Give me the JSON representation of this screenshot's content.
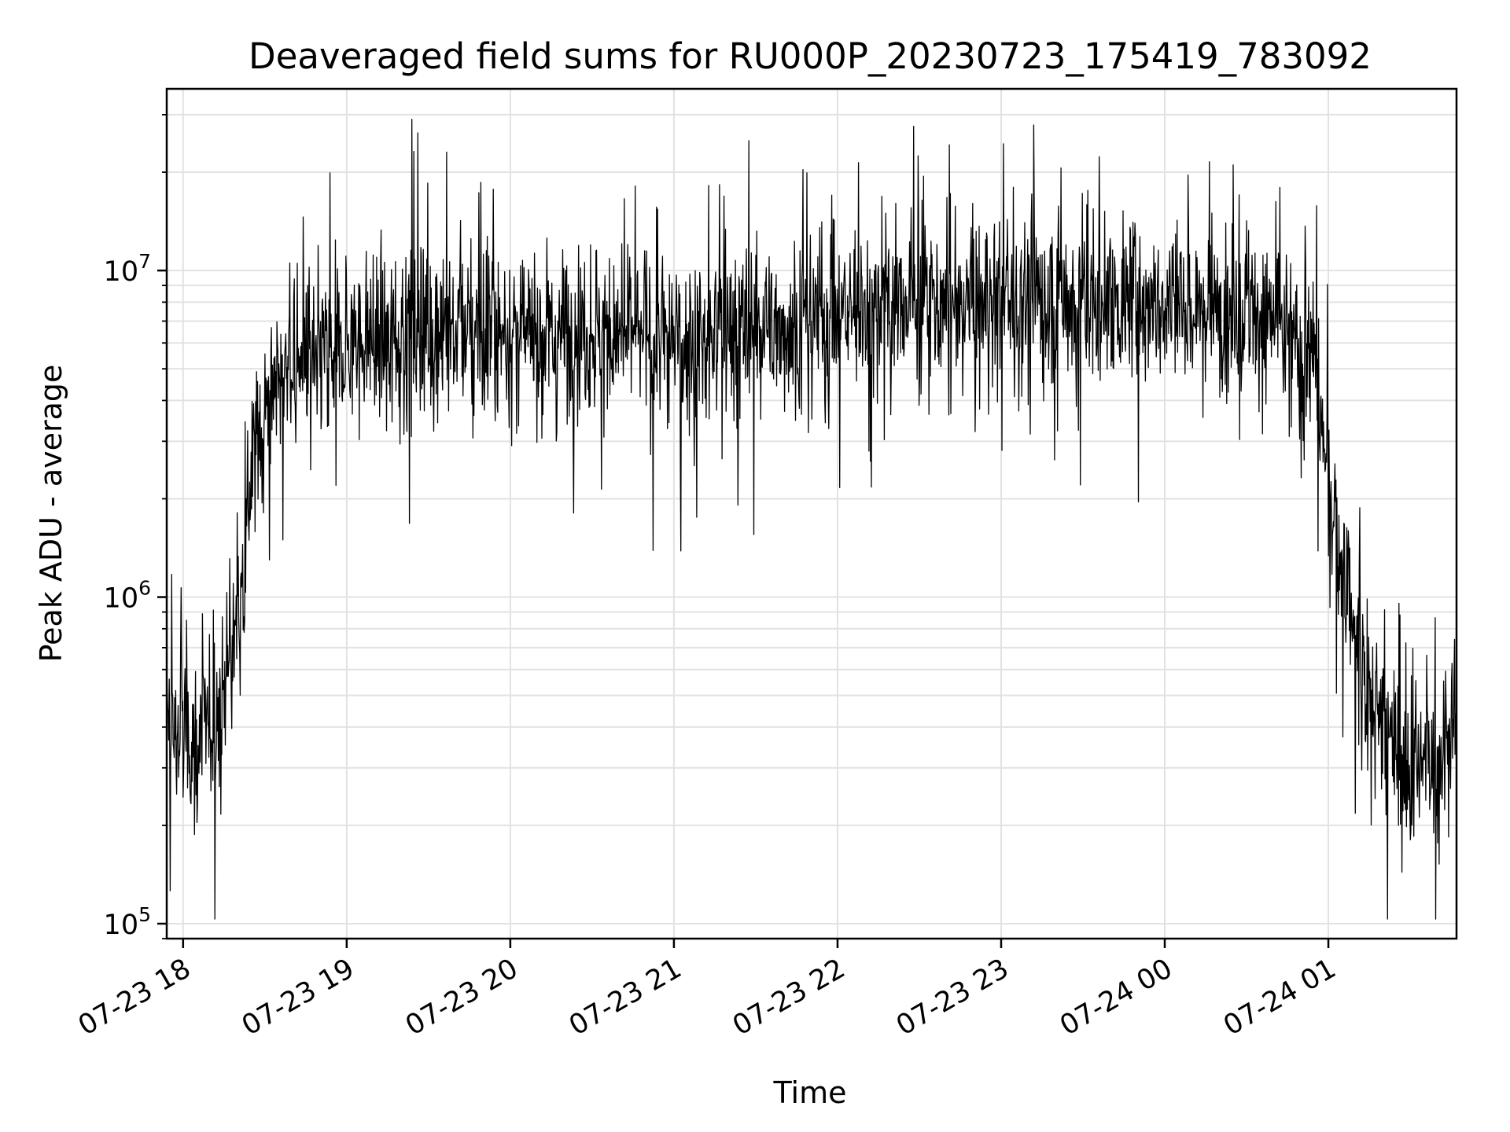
{
  "chart_data": {
    "type": "line",
    "title": "Deaveraged field sums for RU000P_20230723_175419_783092",
    "xlabel": "Time",
    "ylabel": "Peak ADU - average",
    "yscale": "log",
    "x_start": "2023-07-23 17:54",
    "x_end": "2023-07-24 01:47",
    "ylim": [
      90000,
      36000000
    ],
    "grid": true,
    "legend": "none",
    "line_color": "#000000",
    "x_ticks": [
      {
        "time": "2023-07-23 18:00",
        "label": "07-23 18"
      },
      {
        "time": "2023-07-23 19:00",
        "label": "07-23 19"
      },
      {
        "time": "2023-07-23 20:00",
        "label": "07-23 20"
      },
      {
        "time": "2023-07-23 21:00",
        "label": "07-23 21"
      },
      {
        "time": "2023-07-23 22:00",
        "label": "07-23 22"
      },
      {
        "time": "2023-07-23 23:00",
        "label": "07-23 23"
      },
      {
        "time": "2023-07-24 00:00",
        "label": "07-24 00"
      },
      {
        "time": "2023-07-24 01:00",
        "label": "07-24 01"
      }
    ],
    "y_ticks": [
      {
        "value": 100000,
        "base": "10",
        "exp": "5"
      },
      {
        "value": 1000000,
        "base": "10",
        "exp": "6"
      },
      {
        "value": 10000000,
        "base": "10",
        "exp": "7"
      }
    ],
    "series": [
      {
        "time": [
          "2023-07-23 17:54",
          "2023-07-23 18:00",
          "2023-07-23 18:05",
          "2023-07-23 18:10",
          "2023-07-23 18:15",
          "2023-07-23 18:20",
          "2023-07-23 18:25",
          "2023-07-23 18:30",
          "2023-07-23 18:40",
          "2023-07-23 18:50",
          "2023-07-23 19:00",
          "2023-07-23 19:30",
          "2023-07-23 20:00",
          "2023-07-23 20:30",
          "2023-07-23 21:00",
          "2023-07-23 21:30",
          "2023-07-23 22:00",
          "2023-07-23 22:30",
          "2023-07-23 23:00",
          "2023-07-23 23:30",
          "2023-07-24 00:00",
          "2023-07-24 00:30",
          "2023-07-24 00:45",
          "2023-07-24 00:55",
          "2023-07-24 01:00",
          "2023-07-24 01:05",
          "2023-07-24 01:10",
          "2023-07-24 01:15",
          "2023-07-24 01:20",
          "2023-07-24 01:25",
          "2023-07-24 01:30",
          "2023-07-24 01:35",
          "2023-07-24 01:40",
          "2023-07-24 01:47"
        ],
        "values": [
          400000,
          380000,
          350000,
          400000,
          500000,
          800000,
          2500000,
          4000000,
          5000000,
          5500000,
          6000000,
          6500000,
          6500000,
          6500000,
          6000000,
          6500000,
          7500000,
          8000000,
          8000000,
          8000000,
          8000000,
          8000000,
          6500000,
          5000000,
          2500000,
          1200000,
          700000,
          500000,
          400000,
          320000,
          280000,
          300000,
          320000,
          400000
        ],
        "noise": 0.4
      }
    ]
  }
}
